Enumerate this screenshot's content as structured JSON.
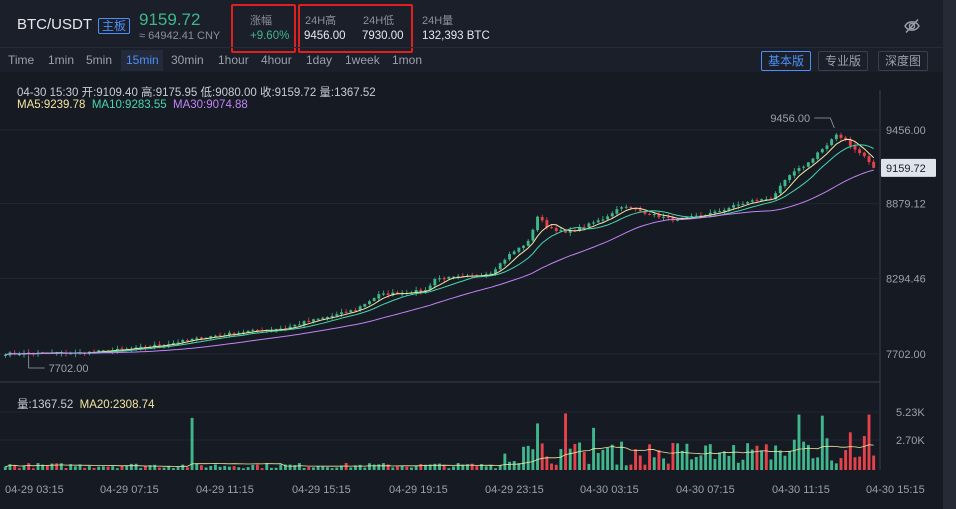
{
  "header": {
    "pair": "BTC/USDT",
    "board_tag": "主板",
    "price": "9159.72",
    "cny": "≈ 64942.41 CNY",
    "change_label": "涨幅",
    "change_value": "+9.60%",
    "high_label": "24H高",
    "high_value": "9456.00",
    "low_label": "24H低",
    "low_value": "7930.00",
    "volume_label": "24H量",
    "volume_value": "132,393 BTC",
    "hide_icon": "eye-off-icon"
  },
  "timeframes": [
    {
      "label": "Time",
      "active": false
    },
    {
      "label": "1min",
      "active": false
    },
    {
      "label": "5min",
      "active": false
    },
    {
      "label": "15min",
      "active": true
    },
    {
      "label": "30min",
      "active": false
    },
    {
      "label": "1hour",
      "active": false
    },
    {
      "label": "4hour",
      "active": false
    },
    {
      "label": "1day",
      "active": false
    },
    {
      "label": "1week",
      "active": false
    },
    {
      "label": "1mon",
      "active": false
    }
  ],
  "views": [
    {
      "label": "基本版",
      "active": true
    },
    {
      "label": "专业版",
      "active": false
    },
    {
      "label": "深度图",
      "active": false
    }
  ],
  "ohlc": "04-30 15:30  开:9109.40  高:9175.95  低:9080.00  收:9159.72  量:1367.52",
  "ma": {
    "ma5": "MA5:9239.78",
    "ma10": "MA10:9283.55",
    "ma30": "MA30:9074.88"
  },
  "volume_info": {
    "vol": "量:1367.52",
    "ma20": "MA20:2308.74"
  },
  "colors": {
    "up": "#3fb68b",
    "down": "#e4434b",
    "ma5": "#f3e7a2",
    "ma10": "#47d6b0",
    "ma30": "#c184f5",
    "accent": "#4d8ff6"
  },
  "chart_data": {
    "type": "candlestick",
    "y_ticks": [
      "9456.00",
      "8879.12",
      "8294.46",
      "7702.00"
    ],
    "y_tick_values": [
      9456.0,
      8879.12,
      8294.46,
      7702.0
    ],
    "last_price": "9159.72",
    "high_annotation": "9456.00",
    "low_annotation": "7702.00",
    "vol_ticks": [
      "5.23K",
      "2.70K"
    ],
    "vol_tick_values": [
      5230,
      2700
    ],
    "x_ticks": [
      "04-29 03:15",
      "04-29 07:15",
      "04-29 11:15",
      "04-29 15:15",
      "04-29 19:15",
      "04-29 23:15",
      "04-30 03:15",
      "04-30 07:15",
      "04-30 11:15",
      "04-30 15:15"
    ],
    "close_anchors": [
      [
        0,
        7705
      ],
      [
        16,
        7710
      ],
      [
        20,
        7722
      ],
      [
        28,
        7745
      ],
      [
        36,
        7790
      ],
      [
        44,
        7840
      ],
      [
        52,
        7880
      ],
      [
        60,
        7905
      ],
      [
        64,
        7950
      ],
      [
        70,
        8000
      ],
      [
        75,
        8050
      ],
      [
        80,
        8165
      ],
      [
        84,
        8180
      ],
      [
        90,
        8200
      ],
      [
        92,
        8290
      ],
      [
        96,
        8300
      ],
      [
        100,
        8310
      ],
      [
        104,
        8340
      ],
      [
        108,
        8480
      ],
      [
        112,
        8580
      ],
      [
        114,
        8780
      ],
      [
        116,
        8700
      ],
      [
        120,
        8650
      ],
      [
        124,
        8700
      ],
      [
        128,
        8760
      ],
      [
        132,
        8860
      ],
      [
        136,
        8820
      ],
      [
        140,
        8780
      ],
      [
        144,
        8750
      ],
      [
        148,
        8780
      ],
      [
        152,
        8810
      ],
      [
        156,
        8860
      ],
      [
        160,
        8900
      ],
      [
        164,
        8920
      ],
      [
        168,
        9100
      ],
      [
        172,
        9200
      ],
      [
        174,
        9280
      ],
      [
        176,
        9330
      ],
      [
        178,
        9420
      ],
      [
        180,
        9380
      ],
      [
        182,
        9300
      ],
      [
        184,
        9250
      ],
      [
        186,
        9160
      ]
    ],
    "candle_count": 187,
    "vol_spikes": [
      [
        40,
        4700
      ],
      [
        114,
        4200
      ],
      [
        120,
        5100
      ],
      [
        126,
        3800
      ],
      [
        170,
        5000
      ],
      [
        175,
        4900
      ],
      [
        181,
        3400
      ],
      [
        185,
        5000
      ]
    ]
  }
}
